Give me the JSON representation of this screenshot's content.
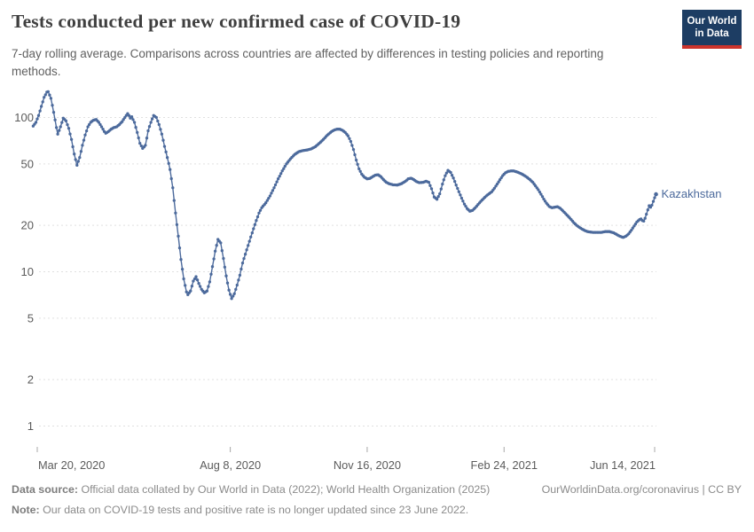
{
  "header": {
    "title": "Tests conducted per new confirmed case of COVID-19",
    "subtitle": "7-day rolling average. Comparisons across countries are affected by differences in testing policies and reporting methods.",
    "logo_line1": "Our World",
    "logo_line2": "in Data"
  },
  "footer": {
    "source_label": "Data source:",
    "source_text": " Official data collated by Our World in Data (2022); World Health Organization (2025)",
    "link_text": "OurWorldinData.org/coronavirus | CC BY",
    "note_label": "Note:",
    "note_text": " Our data on COVID-19 tests and positive rate is no longer updated since 23 June 2022."
  },
  "colors": {
    "line": "#4c6a9c",
    "entity_label": "#4c6a9c",
    "grid": "#e0e0e0",
    "axis_text": "#5b5b5b",
    "tick_mark": "#a8a8a8",
    "title": "#3f3f3f",
    "subtitle": "#616161",
    "footer": "#8b8b8b",
    "logo_bg": "#1d3d63",
    "logo_accent": "#cc342c"
  },
  "chart_data": {
    "type": "line",
    "title": "Tests conducted per new confirmed case of COVID-19",
    "xlabel": "",
    "ylabel": "",
    "y_scale": "log",
    "ylim": [
      1,
      150
    ],
    "grid": true,
    "legend_position": "end-of-line",
    "y_ticks": [
      100,
      50,
      20,
      10,
      5,
      2,
      1
    ],
    "x_ticks": [
      {
        "date": "2020-03-20",
        "label": "Mar 20, 2020"
      },
      {
        "date": "2020-08-08",
        "label": "Aug 8, 2020"
      },
      {
        "date": "2020-11-16",
        "label": "Nov 16, 2020"
      },
      {
        "date": "2021-02-24",
        "label": "Feb 24, 2021"
      },
      {
        "date": "2021-06-14",
        "label": "Jun 14, 2021"
      }
    ],
    "series": [
      {
        "name": "Kazakhstan",
        "color": "#4c6a9c",
        "points": [
          [
            "2020-03-17",
            88
          ],
          [
            "2020-03-19",
            93
          ],
          [
            "2020-03-21",
            103
          ],
          [
            "2020-03-23",
            118
          ],
          [
            "2020-03-25",
            135
          ],
          [
            "2020-03-27",
            146
          ],
          [
            "2020-03-28",
            147
          ],
          [
            "2020-03-30",
            133
          ],
          [
            "2020-04-01",
            108
          ],
          [
            "2020-04-03",
            86
          ],
          [
            "2020-04-04",
            78
          ],
          [
            "2020-04-06",
            87
          ],
          [
            "2020-04-08",
            99
          ],
          [
            "2020-04-10",
            95
          ],
          [
            "2020-04-12",
            85
          ],
          [
            "2020-04-14",
            72
          ],
          [
            "2020-04-16",
            58
          ],
          [
            "2020-04-18",
            49
          ],
          [
            "2020-04-20",
            55
          ],
          [
            "2020-04-22",
            66
          ],
          [
            "2020-04-24",
            77
          ],
          [
            "2020-04-26",
            87
          ],
          [
            "2020-04-28",
            93
          ],
          [
            "2020-04-30",
            96
          ],
          [
            "2020-05-02",
            97
          ],
          [
            "2020-05-04",
            93
          ],
          [
            "2020-05-06",
            87
          ],
          [
            "2020-05-08",
            81
          ],
          [
            "2020-05-09",
            79
          ],
          [
            "2020-05-11",
            81
          ],
          [
            "2020-05-13",
            84
          ],
          [
            "2020-05-15",
            86
          ],
          [
            "2020-05-17",
            87
          ],
          [
            "2020-05-19",
            90
          ],
          [
            "2020-05-21",
            94
          ],
          [
            "2020-05-23",
            100
          ],
          [
            "2020-05-25",
            106
          ],
          [
            "2020-05-26",
            103
          ],
          [
            "2020-05-27",
            99
          ],
          [
            "2020-05-28",
            101
          ],
          [
            "2020-05-30",
            93
          ],
          [
            "2020-06-01",
            80
          ],
          [
            "2020-06-03",
            68
          ],
          [
            "2020-06-05",
            63
          ],
          [
            "2020-06-07",
            66
          ],
          [
            "2020-06-09",
            82
          ],
          [
            "2020-06-11",
            93
          ],
          [
            "2020-06-13",
            103
          ],
          [
            "2020-06-15",
            100
          ],
          [
            "2020-06-17",
            90
          ],
          [
            "2020-06-19",
            78
          ],
          [
            "2020-06-21",
            65
          ],
          [
            "2020-06-23",
            55
          ],
          [
            "2020-06-25",
            46
          ],
          [
            "2020-06-27",
            35
          ],
          [
            "2020-06-29",
            24
          ],
          [
            "2020-07-01",
            17
          ],
          [
            "2020-07-03",
            12
          ],
          [
            "2020-07-05",
            9
          ],
          [
            "2020-07-07",
            7.4
          ],
          [
            "2020-07-08",
            7.1
          ],
          [
            "2020-07-10",
            7.5
          ],
          [
            "2020-07-12",
            8.7
          ],
          [
            "2020-07-14",
            9.3
          ],
          [
            "2020-07-16",
            8.4
          ],
          [
            "2020-07-18",
            7.7
          ],
          [
            "2020-07-20",
            7.3
          ],
          [
            "2020-07-22",
            7.5
          ],
          [
            "2020-07-24",
            8.6
          ],
          [
            "2020-07-26",
            10.8
          ],
          [
            "2020-07-28",
            13.6
          ],
          [
            "2020-07-30",
            16.2
          ],
          [
            "2020-08-01",
            15.4
          ],
          [
            "2020-08-03",
            12.2
          ],
          [
            "2020-08-05",
            9.4
          ],
          [
            "2020-08-07",
            7.6
          ],
          [
            "2020-08-09",
            6.7
          ],
          [
            "2020-08-11",
            7.2
          ],
          [
            "2020-08-13",
            8.2
          ],
          [
            "2020-08-15",
            9.5
          ],
          [
            "2020-08-17",
            11.4
          ],
          [
            "2020-08-19",
            13
          ],
          [
            "2020-08-21",
            14.8
          ],
          [
            "2020-08-23",
            16.8
          ],
          [
            "2020-08-25",
            19
          ],
          [
            "2020-08-27",
            21.5
          ],
          [
            "2020-08-29",
            24
          ],
          [
            "2020-08-31",
            26
          ],
          [
            "2020-09-03",
            28
          ],
          [
            "2020-09-06",
            31
          ],
          [
            "2020-09-09",
            35
          ],
          [
            "2020-09-12",
            40
          ],
          [
            "2020-09-15",
            45
          ],
          [
            "2020-09-18",
            50
          ],
          [
            "2020-09-21",
            54
          ],
          [
            "2020-09-24",
            57.5
          ],
          [
            "2020-09-27",
            60
          ],
          [
            "2020-09-30",
            61
          ],
          [
            "2020-10-03",
            61.5
          ],
          [
            "2020-10-06",
            62.5
          ],
          [
            "2020-10-09",
            64.5
          ],
          [
            "2020-10-12",
            68
          ],
          [
            "2020-10-15",
            72
          ],
          [
            "2020-10-18",
            77
          ],
          [
            "2020-10-21",
            81
          ],
          [
            "2020-10-23",
            83
          ],
          [
            "2020-10-25",
            84
          ],
          [
            "2020-10-27",
            84
          ],
          [
            "2020-10-29",
            82.5
          ],
          [
            "2020-10-31",
            80
          ],
          [
            "2020-11-02",
            76
          ],
          [
            "2020-11-04",
            70
          ],
          [
            "2020-11-06",
            62
          ],
          [
            "2020-11-08",
            53
          ],
          [
            "2020-11-10",
            46.5
          ],
          [
            "2020-11-12",
            43
          ],
          [
            "2020-11-14",
            41
          ],
          [
            "2020-11-16",
            40
          ],
          [
            "2020-11-18",
            40.3
          ],
          [
            "2020-11-20",
            41.3
          ],
          [
            "2020-11-22",
            42.3
          ],
          [
            "2020-11-24",
            42.5
          ],
          [
            "2020-11-26",
            41.3
          ],
          [
            "2020-11-28",
            39.5
          ],
          [
            "2020-11-30",
            38
          ],
          [
            "2020-12-02",
            37.2
          ],
          [
            "2020-12-05",
            36.6
          ],
          [
            "2020-12-08",
            36.5
          ],
          [
            "2020-12-11",
            37.2
          ],
          [
            "2020-12-14",
            38.6
          ],
          [
            "2020-12-16",
            40
          ],
          [
            "2020-12-18",
            40.4
          ],
          [
            "2020-12-20",
            39.6
          ],
          [
            "2020-12-22",
            38.4
          ],
          [
            "2020-12-24",
            37.8
          ],
          [
            "2020-12-27",
            38
          ],
          [
            "2020-12-29",
            38.6
          ],
          [
            "2020-12-31",
            38
          ],
          [
            "2021-01-02",
            34.5
          ],
          [
            "2021-01-04",
            30.5
          ],
          [
            "2021-01-06",
            29.5
          ],
          [
            "2021-01-08",
            32
          ],
          [
            "2021-01-10",
            37
          ],
          [
            "2021-01-12",
            42
          ],
          [
            "2021-01-14",
            45.4
          ],
          [
            "2021-01-16",
            44
          ],
          [
            "2021-01-18",
            40.5
          ],
          [
            "2021-01-20",
            36.5
          ],
          [
            "2021-01-22",
            33
          ],
          [
            "2021-01-24",
            30
          ],
          [
            "2021-01-26",
            27.5
          ],
          [
            "2021-01-28",
            25.7
          ],
          [
            "2021-01-30",
            24.7
          ],
          [
            "2021-02-01",
            25
          ],
          [
            "2021-02-03",
            26
          ],
          [
            "2021-02-05",
            27.3
          ],
          [
            "2021-02-07",
            28.6
          ],
          [
            "2021-02-09",
            29.8
          ],
          [
            "2021-02-11",
            31
          ],
          [
            "2021-02-13",
            32
          ],
          [
            "2021-02-15",
            33
          ],
          [
            "2021-02-17",
            34.8
          ],
          [
            "2021-02-19",
            37
          ],
          [
            "2021-02-21",
            39.5
          ],
          [
            "2021-02-23",
            42
          ],
          [
            "2021-02-25",
            43.8
          ],
          [
            "2021-02-27",
            44.7
          ],
          [
            "2021-03-01",
            45
          ],
          [
            "2021-03-03",
            45
          ],
          [
            "2021-03-05",
            44.5
          ],
          [
            "2021-03-07",
            43.8
          ],
          [
            "2021-03-09",
            43
          ],
          [
            "2021-03-11",
            42
          ],
          [
            "2021-03-13",
            40.8
          ],
          [
            "2021-03-15",
            39.5
          ],
          [
            "2021-03-17",
            38
          ],
          [
            "2021-03-19",
            36
          ],
          [
            "2021-03-21",
            34
          ],
          [
            "2021-03-23",
            31.8
          ],
          [
            "2021-03-25",
            29.6
          ],
          [
            "2021-03-27",
            27.8
          ],
          [
            "2021-03-29",
            26.5
          ],
          [
            "2021-03-31",
            26
          ],
          [
            "2021-04-02",
            26.2
          ],
          [
            "2021-04-04",
            26.4
          ],
          [
            "2021-04-06",
            25.8
          ],
          [
            "2021-04-08",
            24.8
          ],
          [
            "2021-04-10",
            23.8
          ],
          [
            "2021-04-12",
            22.8
          ],
          [
            "2021-04-14",
            21.8
          ],
          [
            "2021-04-16",
            20.8
          ],
          [
            "2021-04-18",
            20
          ],
          [
            "2021-04-20",
            19.4
          ],
          [
            "2021-04-22",
            18.9
          ],
          [
            "2021-04-24",
            18.5
          ],
          [
            "2021-04-26",
            18.2
          ],
          [
            "2021-04-28",
            18.1
          ],
          [
            "2021-04-30",
            18
          ],
          [
            "2021-05-03",
            18
          ],
          [
            "2021-05-06",
            18
          ],
          [
            "2021-05-09",
            18.2
          ],
          [
            "2021-05-12",
            18.2
          ],
          [
            "2021-05-15",
            17.9
          ],
          [
            "2021-05-17",
            17.5
          ],
          [
            "2021-05-19",
            17.1
          ],
          [
            "2021-05-21",
            16.8
          ],
          [
            "2021-05-22",
            16.7
          ],
          [
            "2021-05-24",
            17
          ],
          [
            "2021-05-26",
            17.6
          ],
          [
            "2021-05-28",
            18.6
          ],
          [
            "2021-05-30",
            19.8
          ],
          [
            "2021-06-01",
            21
          ],
          [
            "2021-06-03",
            21.8
          ],
          [
            "2021-06-04",
            22
          ],
          [
            "2021-06-05",
            21.5
          ],
          [
            "2021-06-06",
            21.3
          ],
          [
            "2021-06-07",
            22.2
          ],
          [
            "2021-06-08",
            23.6
          ],
          [
            "2021-06-09",
            25.2
          ],
          [
            "2021-06-10",
            26.8
          ],
          [
            "2021-06-11",
            26.2
          ],
          [
            "2021-06-12",
            27
          ],
          [
            "2021-06-13",
            28.6
          ],
          [
            "2021-06-14",
            30.2
          ],
          [
            "2021-06-15",
            31.8
          ]
        ]
      }
    ]
  }
}
